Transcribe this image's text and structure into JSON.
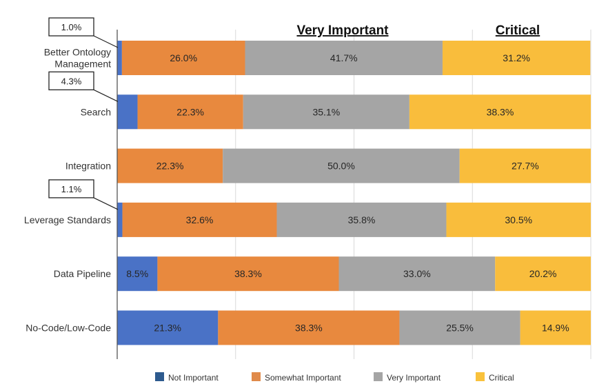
{
  "chart_data": {
    "type": "bar",
    "orientation": "horizontal",
    "stacked": true,
    "normalized_percent": true,
    "title": "",
    "xlabel": "",
    "ylabel": "",
    "xlim": [
      0,
      100
    ],
    "grid": true,
    "legend_position": "bottom",
    "categories": [
      "Better Ontology Management",
      "Search",
      "Integration",
      "Leverage Standards",
      "Data Pipeline",
      "No-Code/Low-Code"
    ],
    "category_lines": [
      [
        "Better Ontology",
        "Management"
      ],
      [
        "Search"
      ],
      [
        "Integration"
      ],
      [
        "Leverage Standards"
      ],
      [
        "Data Pipeline"
      ],
      [
        "No-Code/Low-Code"
      ]
    ],
    "series": [
      {
        "name": "Not Important",
        "color": "#4a72c6",
        "legend_color": "#2d5a8e",
        "values": [
          1.0,
          4.3,
          0.0,
          1.1,
          8.5,
          21.3
        ],
        "labels": [
          "1.0%",
          "4.3%",
          "",
          "1.1%",
          "8.5%",
          "21.3%"
        ]
      },
      {
        "name": "Somewhat Important",
        "color": "#e8893e",
        "legend_color": "#e08a4a",
        "values": [
          26.0,
          22.3,
          22.3,
          32.6,
          38.3,
          38.3
        ],
        "labels": [
          "26.0%",
          "22.3%",
          "22.3%",
          "32.6%",
          "38.3%",
          "38.3%"
        ]
      },
      {
        "name": "Very Important",
        "color": "#a5a5a5",
        "legend_color": "#a5a5a5",
        "values": [
          41.7,
          35.1,
          50.0,
          35.8,
          33.0,
          25.5
        ],
        "labels": [
          "41.7%",
          "35.1%",
          "50.0%",
          "35.8%",
          "33.0%",
          "25.5%"
        ]
      },
      {
        "name": "Critical",
        "color": "#f9bd3c",
        "legend_color": "#f9c23c",
        "values": [
          31.2,
          38.3,
          27.7,
          30.5,
          20.2,
          14.9
        ],
        "labels": [
          "31.2%",
          "38.3%",
          "27.7%",
          "30.5%",
          "20.2%",
          "14.9%"
        ]
      }
    ],
    "callouts": [
      {
        "category_index": 0,
        "text": "1.0%"
      },
      {
        "category_index": 1,
        "text": "4.3%"
      },
      {
        "category_index": 3,
        "text": "1.1%"
      }
    ],
    "annotations": [
      {
        "text": "Very Important",
        "style": "bold-underline",
        "above_series": "Very Important"
      },
      {
        "text": "Critical",
        "style": "bold-underline",
        "above_series": "Critical"
      }
    ]
  }
}
